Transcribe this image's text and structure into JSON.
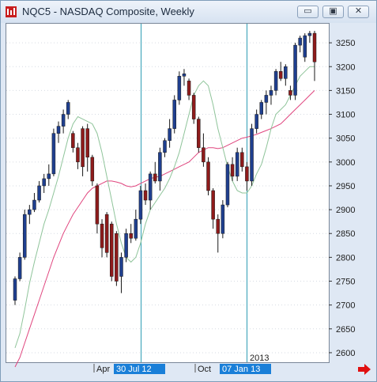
{
  "window": {
    "title": "NQC5 - NASDAQ Composite, Weekly",
    "buttons": [
      {
        "name": "minimize-button",
        "glyph": "▭"
      },
      {
        "name": "restore-button",
        "glyph": "▣"
      },
      {
        "name": "close-button",
        "glyph": "✕"
      }
    ]
  },
  "chart_data": {
    "type": "candlestick",
    "ylim": [
      2580,
      3290
    ],
    "yticks": [
      2600,
      2650,
      2700,
      2750,
      2800,
      2850,
      2900,
      2950,
      3000,
      3050,
      3100,
      3150,
      3200,
      3250
    ],
    "xticks": [
      {
        "label": "Apr",
        "highlight": false
      },
      {
        "label": "30 Jul 12",
        "highlight": true
      },
      {
        "label": "Oct",
        "highlight": false
      },
      {
        "label": "07 Jan 13",
        "highlight": true
      }
    ],
    "year_label": "2013",
    "markers": [
      "30 Jul 12",
      "07 Jan 13"
    ],
    "candles": [
      [
        2710,
        2760,
        2700,
        2755
      ],
      [
        2755,
        2810,
        2750,
        2800
      ],
      [
        2800,
        2900,
        2795,
        2890
      ],
      [
        2890,
        2910,
        2870,
        2900
      ],
      [
        2900,
        2935,
        2895,
        2920
      ],
      [
        2920,
        2960,
        2915,
        2950
      ],
      [
        2950,
        2975,
        2935,
        2965
      ],
      [
        2965,
        2995,
        2950,
        2975
      ],
      [
        2975,
        3070,
        2970,
        3060
      ],
      [
        3060,
        3085,
        3040,
        3075
      ],
      [
        3075,
        3110,
        3060,
        3100
      ],
      [
        3100,
        3130,
        3090,
        3125
      ],
      [
        3060,
        3065,
        3020,
        3030
      ],
      [
        3030,
        3040,
        2985,
        3000
      ],
      [
        3070,
        3075,
        2970,
        2990
      ],
      [
        3070,
        3080,
        2980,
        3010
      ],
      [
        3010,
        3015,
        2950,
        2960
      ],
      [
        2950,
        2955,
        2850,
        2870
      ],
      [
        2870,
        2880,
        2800,
        2820
      ],
      [
        2890,
        2895,
        2800,
        2810
      ],
      [
        2870,
        2875,
        2750,
        2760
      ],
      [
        2850,
        2855,
        2740,
        2750
      ],
      [
        2760,
        2810,
        2725,
        2800
      ],
      [
        2800,
        2860,
        2790,
        2850
      ],
      [
        2850,
        2870,
        2830,
        2840
      ],
      [
        2840,
        2900,
        2835,
        2880
      ],
      [
        2880,
        2950,
        2870,
        2940
      ],
      [
        2940,
        2955,
        2910,
        2920
      ],
      [
        2920,
        2980,
        2900,
        2975
      ],
      [
        2975,
        3000,
        2955,
        2960
      ],
      [
        2960,
        3030,
        2940,
        3020
      ],
      [
        3020,
        3050,
        3010,
        3045
      ],
      [
        3045,
        3090,
        3030,
        3070
      ],
      [
        3070,
        3140,
        3060,
        3130
      ],
      [
        3130,
        3190,
        3120,
        3180
      ],
      [
        3180,
        3195,
        3160,
        3185
      ],
      [
        3170,
        3175,
        3130,
        3140
      ],
      [
        3140,
        3145,
        3080,
        3090
      ],
      [
        3090,
        3095,
        3020,
        3030
      ],
      [
        3030,
        3060,
        2990,
        3000
      ],
      [
        3000,
        3010,
        2930,
        2940
      ],
      [
        2940,
        2945,
        2860,
        2880
      ],
      [
        2880,
        2890,
        2810,
        2850
      ],
      [
        2850,
        2920,
        2840,
        2910
      ],
      [
        2910,
        3000,
        2905,
        2995
      ],
      [
        2995,
        3010,
        2960,
        2970
      ],
      [
        2970,
        3030,
        2960,
        3020
      ],
      [
        3020,
        3030,
        2980,
        2990
      ],
      [
        2990,
        3000,
        2940,
        2960
      ],
      [
        2960,
        3080,
        2950,
        3070
      ],
      [
        3070,
        3110,
        3060,
        3100
      ],
      [
        3100,
        3130,
        3090,
        3125
      ],
      [
        3125,
        3150,
        3100,
        3140
      ],
      [
        3140,
        3160,
        3120,
        3150
      ],
      [
        3150,
        3195,
        3140,
        3190
      ],
      [
        3190,
        3210,
        3170,
        3175
      ],
      [
        3175,
        3205,
        3160,
        3200
      ],
      [
        3150,
        3160,
        3130,
        3140
      ],
      [
        3140,
        3250,
        3130,
        3245
      ],
      [
        3245,
        3265,
        3230,
        3260
      ],
      [
        3220,
        3270,
        3210,
        3265
      ],
      [
        3265,
        3275,
        3250,
        3270
      ],
      [
        3270,
        3275,
        3170,
        3210
      ]
    ],
    "fast_ma": [
      2610,
      2640,
      2690,
      2745,
      2790,
      2830,
      2870,
      2900,
      2935,
      2970,
      3010,
      3050,
      3080,
      3095,
      3090,
      3085,
      3080,
      3060,
      3020,
      2970,
      2920,
      2870,
      2830,
      2800,
      2790,
      2800,
      2830,
      2870,
      2900,
      2915,
      2930,
      2945,
      2965,
      2990,
      3020,
      3060,
      3100,
      3140,
      3160,
      3170,
      3160,
      3120,
      3070,
      3030,
      2990,
      2960,
      2940,
      2935,
      2935,
      2950,
      2975,
      2995,
      3030,
      3070,
      3100,
      3110,
      3120,
      3140,
      3160,
      3180,
      3190,
      3200,
      3200
    ],
    "slow_ma": [
      2570,
      2590,
      2620,
      2650,
      2680,
      2710,
      2740,
      2770,
      2800,
      2825,
      2850,
      2870,
      2890,
      2905,
      2920,
      2935,
      2945,
      2950,
      2955,
      2960,
      2960,
      2958,
      2955,
      2950,
      2948,
      2950,
      2955,
      2960,
      2965,
      2968,
      2970,
      2975,
      2980,
      2985,
      2990,
      2995,
      3000,
      3010,
      3020,
      3025,
      3030,
      3030,
      3028,
      3030,
      3035,
      3040,
      3045,
      3050,
      3052,
      3055,
      3058,
      3062,
      3066,
      3070,
      3075,
      3080,
      3090,
      3100,
      3110,
      3120,
      3130,
      3140,
      3150
    ]
  }
}
